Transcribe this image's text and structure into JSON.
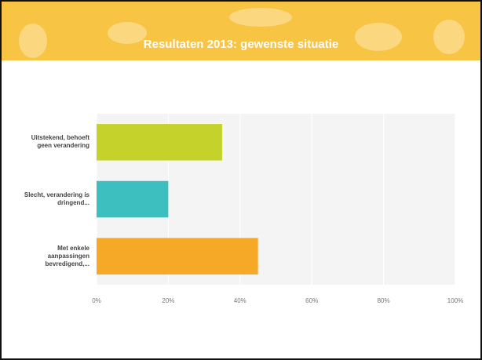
{
  "chart_data": {
    "type": "bar",
    "orientation": "horizontal",
    "title": "Resultaten 2013: gewenste situatie",
    "categories": [
      "Uitstekend, behoeft geen verandering",
      "Slecht, verandering is dringend...",
      "Met enkele aanpassingen bevredigend,..."
    ],
    "values": [
      35,
      20,
      45
    ],
    "colors": [
      "#c6d22c",
      "#3dbfbf",
      "#f6a927"
    ],
    "xlim": [
      0,
      100
    ],
    "xticks": [
      {
        "value": 0,
        "label": "0%"
      },
      {
        "value": 20,
        "label": "20%"
      },
      {
        "value": 40,
        "label": "40%"
      },
      {
        "value": 60,
        "label": "60%"
      },
      {
        "value": 80,
        "label": "80%"
      },
      {
        "value": 100,
        "label": "100%"
      }
    ],
    "grid": true
  }
}
